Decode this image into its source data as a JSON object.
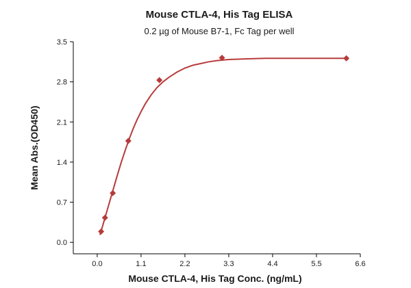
{
  "chart_data": {
    "type": "scatter",
    "title": "Mouse CTLA-4, His Tag ELISA",
    "subtitle": "0.2 µg of Mouse B7-1, Fc Tag per well",
    "xlabel": "Mouse CTLA-4, His Tag Conc. (ng/mL)",
    "ylabel": "Mean Abs.(OD450)",
    "xlim": [
      -0.6,
      6.6
    ],
    "ylim": [
      -0.2,
      3.5
    ],
    "x_ticks": [
      "0.0",
      "1.1",
      "2.2",
      "3.3",
      "4.4",
      "5.5",
      "6.6"
    ],
    "y_ticks": [
      "0.0",
      "0.7",
      "1.4",
      "2.1",
      "2.8",
      "3.5"
    ],
    "grid": false,
    "series": [
      {
        "marker": "diamond",
        "color": "#b73a3a",
        "points": [
          {
            "x": 0.098,
            "y": 0.19
          },
          {
            "x": 0.195,
            "y": 0.43
          },
          {
            "x": 0.39,
            "y": 0.86
          },
          {
            "x": 0.78,
            "y": 1.77
          },
          {
            "x": 1.56,
            "y": 2.83
          },
          {
            "x": 3.13,
            "y": 3.22
          },
          {
            "x": 6.25,
            "y": 3.21
          }
        ]
      }
    ],
    "fit_curve": {
      "color": "#b73a3a",
      "x": [
        0.07,
        0.1,
        0.15,
        0.2,
        0.3,
        0.4,
        0.5,
        0.6,
        0.7,
        0.8,
        0.9,
        1.0,
        1.1,
        1.2,
        1.35,
        1.5,
        1.65,
        1.8,
        2.0,
        2.2,
        2.4,
        2.6,
        2.8,
        3.0,
        3.3,
        3.7,
        4.2,
        4.8,
        5.5,
        6.25
      ],
      "y": [
        0.13,
        0.2,
        0.32,
        0.44,
        0.68,
        0.92,
        1.16,
        1.39,
        1.6,
        1.8,
        1.98,
        2.14,
        2.28,
        2.41,
        2.57,
        2.7,
        2.8,
        2.88,
        2.97,
        3.04,
        3.09,
        3.12,
        3.15,
        3.17,
        3.19,
        3.2,
        3.21,
        3.21,
        3.21,
        3.21
      ]
    }
  }
}
